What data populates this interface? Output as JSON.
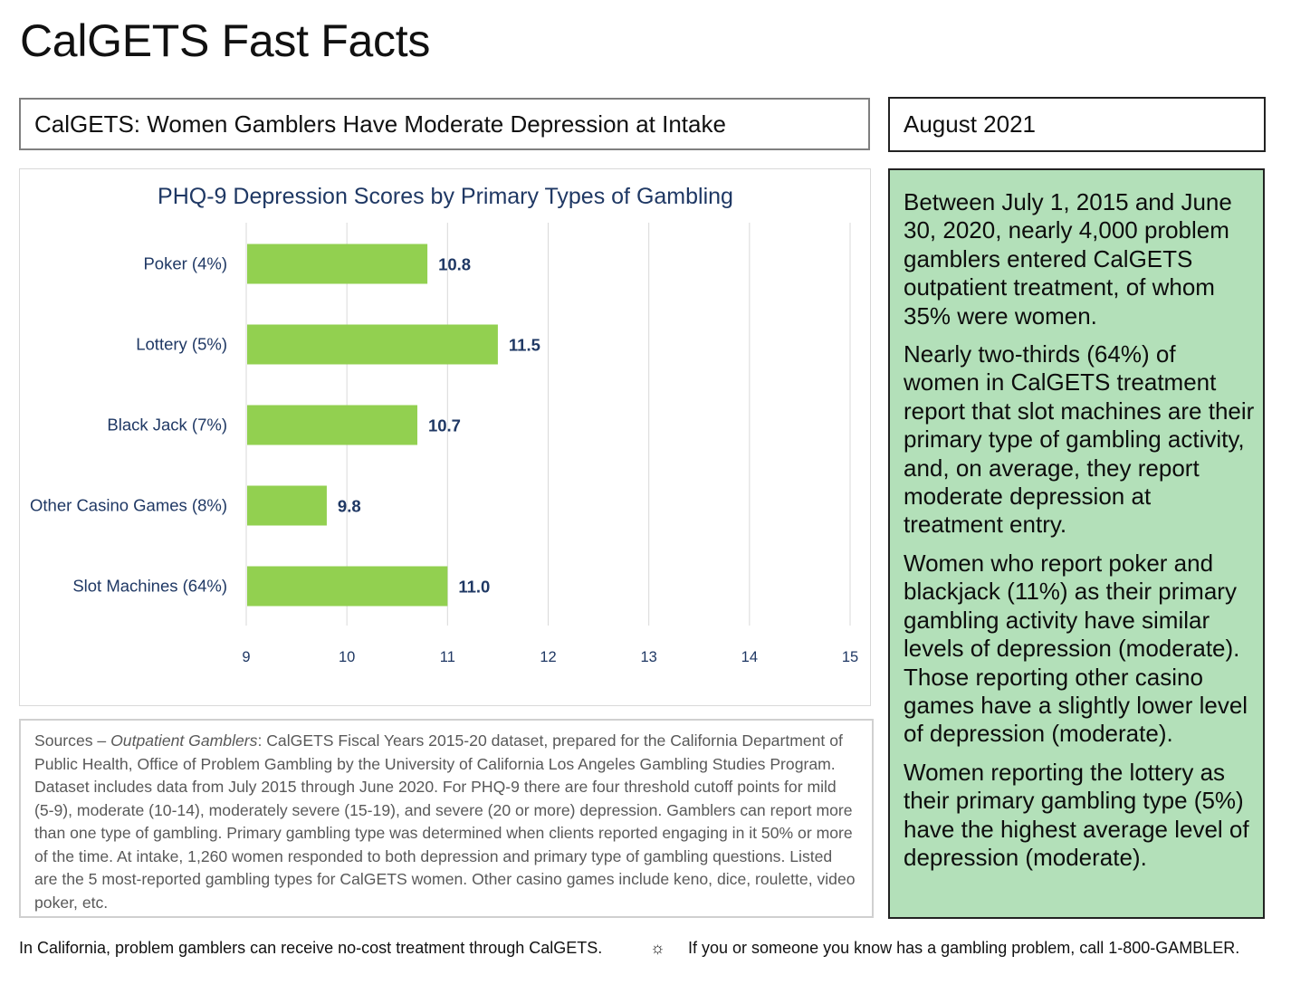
{
  "header": {
    "title": "CalGETS Fast Facts",
    "subtitle": "CalGETS: Women Gamblers Have Moderate Depression at Intake",
    "date": "August 2021"
  },
  "chart_data": {
    "type": "bar",
    "orientation": "horizontal",
    "title": "PHQ-9 Depression Scores by Primary Types of Gambling",
    "categories": [
      "Poker (4%)",
      "Lottery (5%)",
      "Black Jack (7%)",
      "Other Casino Games (8%)",
      "Slot Machines (64%)"
    ],
    "values": [
      10.8,
      11.5,
      10.7,
      9.8,
      11.0
    ],
    "data_labels": [
      "10.8",
      "11.5",
      "10.7",
      "9.8",
      "11.0"
    ],
    "xlim": [
      9,
      15
    ],
    "xticks": [
      "9",
      "10",
      "11",
      "12",
      "13",
      "14",
      "15"
    ],
    "xlabel": "",
    "ylabel": "",
    "grid": true,
    "bar_color": "#92d050",
    "title_color": "#1f3864",
    "label_color": "#1f3864"
  },
  "sources": {
    "prefix": "Sources – ",
    "italic": "Outpatient Gamblers",
    "text": ": CalGETS Fiscal Years 2015-20 dataset, prepared for the California Department of Public Health, Office of Problem Gambling by the University of California Los Angeles Gambling Studies Program. Dataset includes data from July 2015 through June 2020. For PHQ-9 there are four threshold cutoff points for mild (5-9), moderate (10-14), moderately severe (15-19), and severe (20 or more) depression. Gamblers can report more than one type of gambling. Primary gambling type was determined when clients reported engaging in it 50% or more of the time. At intake, 1,260 women responded to both depression and primary type of gambling questions. Listed are the 5 most-reported gambling types for CalGETS women. Other casino games include keno, dice, roulette, video poker, etc."
  },
  "info_panel": {
    "paragraphs": [
      "Between July 1, 2015 and June 30, 2020, nearly 4,000 problem gamblers entered CalGETS outpatient treatment, of whom 35% were women.",
      "Nearly two-thirds (64%) of women in CalGETS treatment report that slot machines are their primary type of gambling activity, and, on average, they report moderate depression at treatment entry.",
      "Women who report poker and blackjack (11%) as their primary gambling activity have similar levels of depression (moderate). Those reporting other casino games have a slightly lower level of depression (moderate).",
      "Women reporting the lottery as their primary gambling type (5%) have the highest average level of depression (moderate)."
    ],
    "background": "#b3e0b9"
  },
  "footer": {
    "left": "In California, problem gamblers can receive no-cost treatment through CalGETS.",
    "separator": "☼",
    "right": "If you or someone you know has a gambling problem, call 1-800-GAMBLER."
  }
}
